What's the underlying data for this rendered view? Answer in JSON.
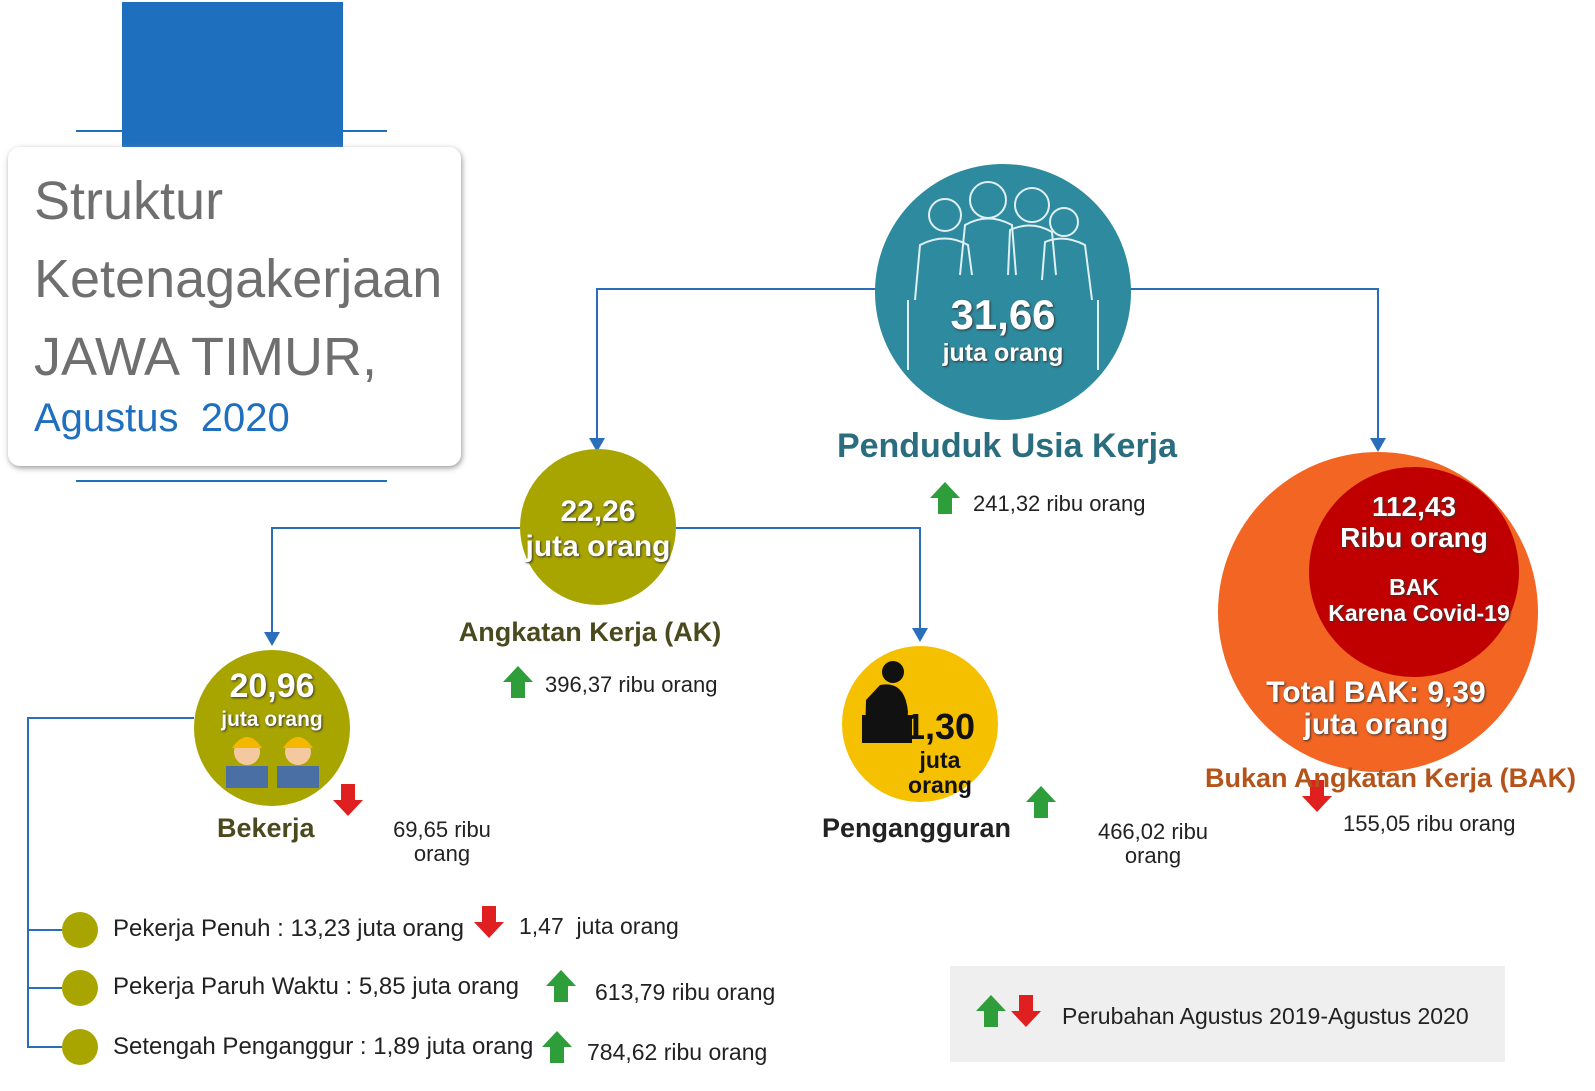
{
  "header": {
    "title_lines": [
      "Struktur",
      "Ketenagakerjaan",
      "JAWA TIMUR,"
    ],
    "period": "Agustus  2020"
  },
  "nodes": [
    {
      "value": "31,66",
      "unit": "juta orang",
      "label": "Penduduk Usia Kerja",
      "change": {
        "text": "241,32 ribu orang",
        "direction": "up"
      }
    },
    {
      "value": "22,26",
      "unit": "juta orang",
      "label": "Angkatan Kerja (AK)",
      "change": {
        "text": "396,37 ribu orang",
        "direction": "up"
      }
    },
    {
      "value": "20,96",
      "unit": "juta orang",
      "label": "Bekerja",
      "change": {
        "text": "69,65 ribu orang",
        "direction": "down"
      }
    },
    {
      "value": "1,30",
      "unit": "juta orang",
      "label": "Pengangguran",
      "change": {
        "text": "466,02 ribu orang",
        "direction": "up"
      }
    },
    {
      "value": "Total BAK: 9,39",
      "unit": "juta orang",
      "label": "Bukan Angkatan Kerja (BAK)",
      "change": {
        "text": "155,05 ribu orang",
        "direction": "down"
      },
      "covid": {
        "value": "112,43",
        "unit": "Ribu orang",
        "label": "BAK",
        "sublabel": "Karena Covid-19"
      }
    }
  ],
  "workers": [
    {
      "text": "Pekerja Penuh : 13,23 juta orang",
      "change": {
        "text": "1,47  juta orang",
        "direction": "down"
      }
    },
    {
      "text": "Pekerja Paruh Waktu : 5,85 juta orang",
      "change": {
        "text": "613,79 ribu orang",
        "direction": "up"
      }
    },
    {
      "text": "Setengah Penganggur : 1,89 juta orang",
      "change": {
        "text": "784,62 ribu orang",
        "direction": "up"
      }
    }
  ],
  "legend": {
    "text": "Perubahan Agustus 2019-Agustus 2020"
  }
}
